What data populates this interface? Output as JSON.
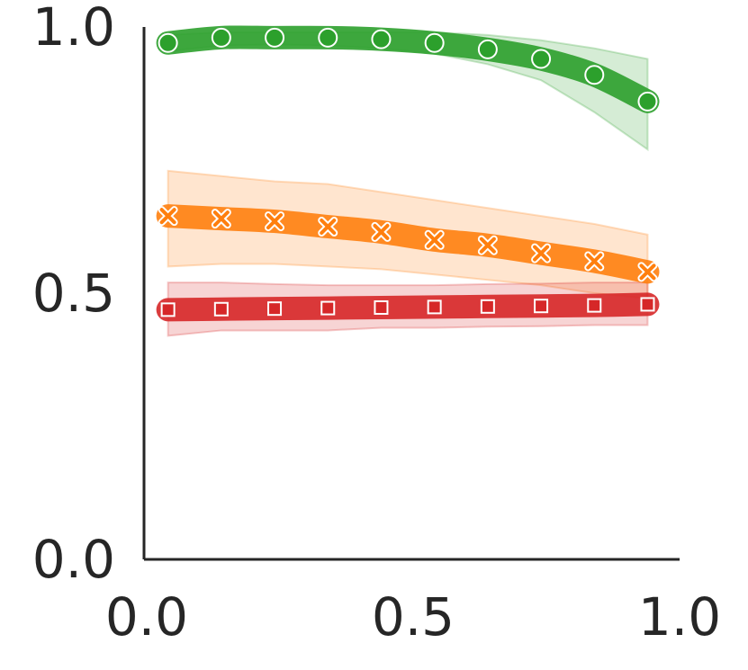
{
  "chart_data": {
    "type": "line",
    "title": "",
    "xlabel": "",
    "ylabel": "",
    "xlim": [
      -0.005,
      1.0
    ],
    "ylim": [
      0.0,
      1.0
    ],
    "xticks": [
      "0.0",
      "0.5",
      "1.0"
    ],
    "yticks": [
      "0.0",
      "0.5",
      "1.0"
    ],
    "grid": false,
    "x": [
      0.04,
      0.14,
      0.24,
      0.34,
      0.44,
      0.54,
      0.64,
      0.74,
      0.84,
      0.94
    ],
    "series": [
      {
        "key": "green",
        "color": "#2ca02c",
        "marker": "circle",
        "values": [
          0.97,
          0.98,
          0.98,
          0.98,
          0.977,
          0.97,
          0.958,
          0.94,
          0.91,
          0.86
        ],
        "band_low": [
          0.955,
          0.965,
          0.967,
          0.965,
          0.96,
          0.95,
          0.93,
          0.9,
          0.84,
          0.77
        ],
        "band_high": [
          0.985,
          0.99,
          0.99,
          0.99,
          0.99,
          0.99,
          0.985,
          0.975,
          0.96,
          0.94
        ]
      },
      {
        "key": "orange",
        "color": "#ff7f0e",
        "marker": "x",
        "values": [
          0.645,
          0.64,
          0.635,
          0.625,
          0.615,
          0.6,
          0.59,
          0.575,
          0.56,
          0.54
        ],
        "band_low": [
          0.55,
          0.555,
          0.555,
          0.55,
          0.545,
          0.535,
          0.525,
          0.515,
          0.5,
          0.49
        ],
        "band_high": [
          0.73,
          0.72,
          0.71,
          0.705,
          0.69,
          0.675,
          0.66,
          0.645,
          0.63,
          0.61
        ]
      },
      {
        "key": "red",
        "color": "#d62728",
        "marker": "square",
        "values": [
          0.469,
          0.47,
          0.471,
          0.472,
          0.473,
          0.474,
          0.475,
          0.476,
          0.477,
          0.479
        ],
        "band_low": [
          0.42,
          0.43,
          0.43,
          0.43,
          0.435,
          0.435,
          0.437,
          0.438,
          0.44,
          0.44
        ],
        "band_high": [
          0.52,
          0.52,
          0.517,
          0.515,
          0.515,
          0.515,
          0.517,
          0.518,
          0.52,
          0.52
        ]
      }
    ]
  }
}
